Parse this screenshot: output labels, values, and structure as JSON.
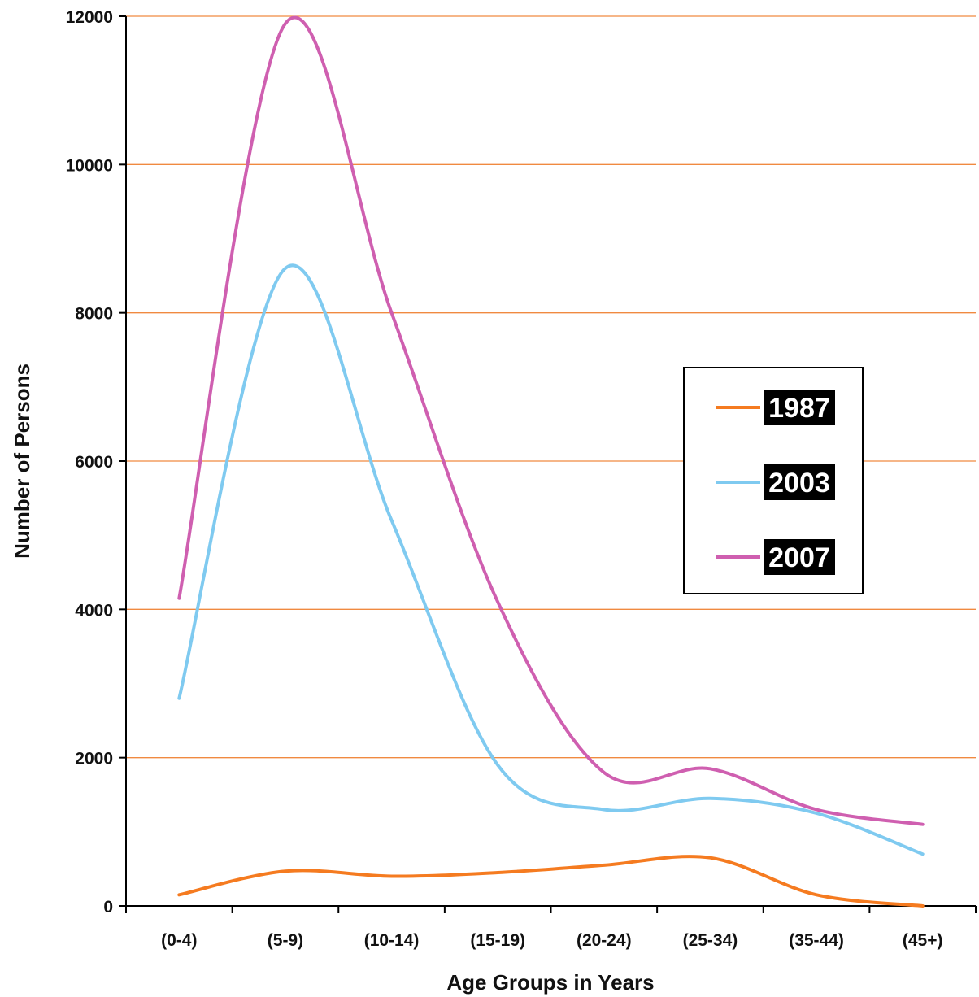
{
  "chart_data": {
    "type": "line",
    "title": "",
    "xlabel": "Age Groups in Years",
    "ylabel": "Number of Persons",
    "categories": [
      "(0-4)",
      "(5-9)",
      "(10-14)",
      "(15-19)",
      "(20-24)",
      "(25-34)",
      "(35-44)",
      "(45+)"
    ],
    "ylim": [
      0,
      12000
    ],
    "yticks": [
      "0",
      "2000",
      "4000",
      "6000",
      "8000",
      "10000",
      "12000"
    ],
    "grid": "horizontal",
    "legend_position": "right",
    "series": [
      {
        "name": "1987",
        "color": "#f57b20",
        "values": [
          150,
          470,
          400,
          450,
          550,
          650,
          150,
          0
        ]
      },
      {
        "name": "2003",
        "color": "#7fcaf0",
        "values": [
          2800,
          8600,
          5200,
          1900,
          1300,
          1450,
          1250,
          700
        ]
      },
      {
        "name": "2007",
        "color": "#cf5fb0",
        "values": [
          4150,
          11900,
          8000,
          4100,
          1800,
          1850,
          1300,
          1100
        ]
      }
    ],
    "gridline_color": "#f08a40"
  }
}
